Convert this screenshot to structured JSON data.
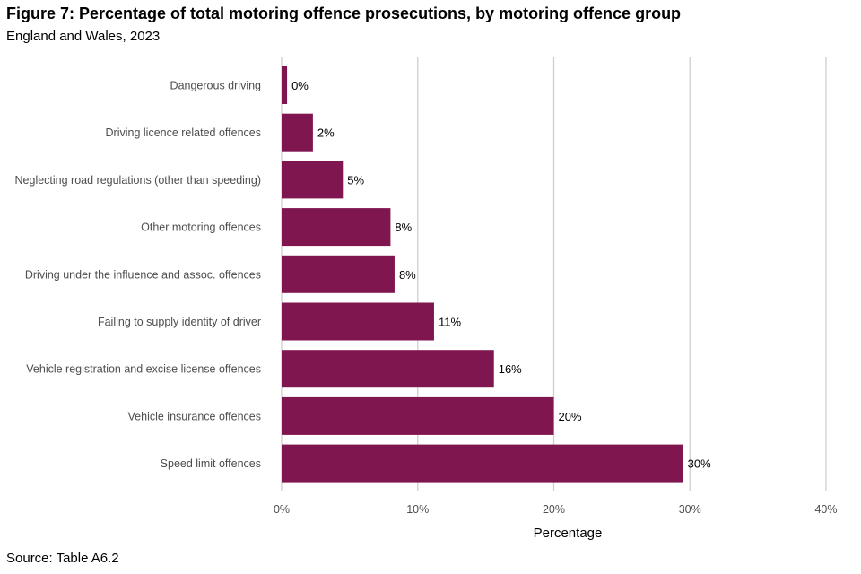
{
  "chart_data": {
    "type": "bar",
    "orientation": "horizontal",
    "title": "Figure 7: Percentage of total motoring offence prosecutions, by motoring offence group",
    "subtitle": "England and Wales, 2023",
    "xlabel": "Percentage",
    "ylabel": "",
    "categories": [
      "Dangerous driving",
      "Driving licence related offences",
      "Neglecting road regulations (other than speeding)",
      "Other motoring offences",
      "Driving under the influence and assoc. offences",
      "Failing to supply identity of driver",
      "Vehicle registration and excise license offences",
      "Vehicle insurance offences",
      "Speed limit offences"
    ],
    "values": [
      0.4,
      2.3,
      4.5,
      8.0,
      8.3,
      11.2,
      15.6,
      20.0,
      29.5
    ],
    "data_labels": [
      "0%",
      "2%",
      "5%",
      "8%",
      "8%",
      "11%",
      "16%",
      "20%",
      "30%"
    ],
    "xlim": [
      0,
      40
    ],
    "xticks": [
      0,
      10,
      20,
      30,
      40
    ],
    "xtick_labels": [
      "0%",
      "10%",
      "20%",
      "30%",
      "40%"
    ],
    "grid": "vertical",
    "bar_color": "#801650",
    "grid_color": "#d0d0d0"
  },
  "footer": {
    "source": "Source: Table A6.2"
  }
}
